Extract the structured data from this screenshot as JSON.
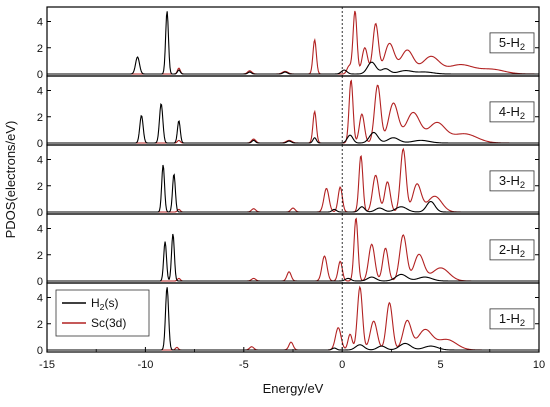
{
  "chart_data": {
    "type": "line",
    "xlabel": "Energy/eV",
    "ylabel": "PDOS(electrons/eV)",
    "xlim": [
      -15,
      10
    ],
    "xticks": [
      -15,
      -10,
      -5,
      0,
      5,
      10
    ],
    "ylim": [
      0,
      4.8
    ],
    "yticks": [
      0,
      2,
      4
    ],
    "fermi_level": 0,
    "legend": {
      "placement": "bottom-left",
      "entries": [
        "H2(s)",
        "Sc(3d)"
      ]
    },
    "series_colors": {
      "H2(s)": "#000000",
      "Sc(3d)": "#b22222"
    },
    "panels": [
      {
        "label": "5-H2",
        "h2_peaks": [
          [
            -10.4,
            1.3,
            0.14
          ],
          [
            -8.9,
            4.8,
            0.1
          ],
          [
            -8.3,
            0.3,
            0.1
          ],
          [
            -4.7,
            0.15,
            0.12
          ],
          [
            -2.9,
            0.15,
            0.15
          ],
          [
            0.1,
            0.3,
            0.2
          ],
          [
            1.5,
            0.9,
            0.3
          ],
          [
            2.2,
            0.4,
            0.3
          ],
          [
            3.2,
            0.25,
            0.5
          ],
          [
            4.2,
            0.15,
            0.6
          ]
        ],
        "sc_peaks": [
          [
            -8.3,
            0.45,
            0.1
          ],
          [
            -4.7,
            0.25,
            0.15
          ],
          [
            -2.9,
            0.2,
            0.2
          ],
          [
            -1.4,
            2.6,
            0.12
          ],
          [
            0.35,
            0.6,
            0.15
          ],
          [
            0.65,
            4.8,
            0.14
          ],
          [
            1.15,
            2.0,
            0.2
          ],
          [
            1.7,
            3.8,
            0.2
          ],
          [
            2.4,
            2.3,
            0.35
          ],
          [
            3.3,
            1.8,
            0.45
          ],
          [
            4.5,
            1.3,
            0.6
          ],
          [
            6.0,
            0.7,
            0.9
          ],
          [
            7.6,
            0.35,
            0.9
          ]
        ]
      },
      {
        "label": "4-H2",
        "h2_peaks": [
          [
            -10.2,
            2.1,
            0.12
          ],
          [
            -9.2,
            3.0,
            0.12
          ],
          [
            -8.3,
            1.7,
            0.1
          ],
          [
            -4.5,
            0.2,
            0.12
          ],
          [
            -2.7,
            0.15,
            0.15
          ],
          [
            -1.4,
            0.4,
            0.12
          ],
          [
            0.4,
            0.6,
            0.2
          ],
          [
            1.6,
            0.8,
            0.3
          ],
          [
            2.6,
            0.4,
            0.4
          ],
          [
            4.0,
            0.2,
            0.6
          ]
        ],
        "sc_peaks": [
          [
            -8.3,
            0.2,
            0.1
          ],
          [
            -4.5,
            0.3,
            0.15
          ],
          [
            -2.7,
            0.2,
            0.2
          ],
          [
            -1.4,
            2.4,
            0.12
          ],
          [
            0.45,
            4.8,
            0.14
          ],
          [
            1.0,
            2.2,
            0.18
          ],
          [
            1.8,
            4.4,
            0.22
          ],
          [
            2.6,
            3.0,
            0.35
          ],
          [
            3.6,
            2.3,
            0.5
          ],
          [
            4.8,
            1.5,
            0.6
          ],
          [
            6.2,
            0.7,
            0.9
          ]
        ]
      },
      {
        "label": "3-H2",
        "h2_peaks": [
          [
            -9.1,
            3.6,
            0.1
          ],
          [
            -8.55,
            2.9,
            0.1
          ],
          [
            -0.4,
            0.2,
            0.15
          ],
          [
            1.0,
            0.4,
            0.2
          ],
          [
            1.9,
            0.3,
            0.3
          ],
          [
            3.0,
            0.4,
            0.4
          ],
          [
            4.5,
            0.8,
            0.3
          ]
        ],
        "sc_peaks": [
          [
            -8.3,
            0.2,
            0.1
          ],
          [
            -4.5,
            0.25,
            0.15
          ],
          [
            -2.5,
            0.3,
            0.15
          ],
          [
            -0.8,
            1.8,
            0.18
          ],
          [
            -0.1,
            1.9,
            0.15
          ],
          [
            0.95,
            4.3,
            0.14
          ],
          [
            1.7,
            2.8,
            0.22
          ],
          [
            2.3,
            2.3,
            0.2
          ],
          [
            3.1,
            4.8,
            0.2
          ],
          [
            3.8,
            2.1,
            0.3
          ],
          [
            4.7,
            1.2,
            0.5
          ]
        ]
      },
      {
        "label": "2-H2",
        "h2_peaks": [
          [
            -9.0,
            3.0,
            0.1
          ],
          [
            -8.6,
            3.6,
            0.1
          ],
          [
            0.3,
            0.2,
            0.2
          ],
          [
            1.5,
            0.3,
            0.3
          ],
          [
            3.0,
            0.5,
            0.4
          ],
          [
            4.2,
            0.3,
            0.5
          ]
        ],
        "sc_peaks": [
          [
            -8.3,
            0.2,
            0.1
          ],
          [
            -4.5,
            0.2,
            0.15
          ],
          [
            -2.7,
            0.7,
            0.15
          ],
          [
            -0.9,
            1.9,
            0.18
          ],
          [
            -0.1,
            1.5,
            0.15
          ],
          [
            0.7,
            4.8,
            0.14
          ],
          [
            1.5,
            2.8,
            0.22
          ],
          [
            2.2,
            2.5,
            0.2
          ],
          [
            3.1,
            3.5,
            0.25
          ],
          [
            3.9,
            2.0,
            0.35
          ],
          [
            5.0,
            1.0,
            0.6
          ]
        ]
      },
      {
        "label": "1-H2",
        "h2_peaks": [
          [
            -8.9,
            4.8,
            0.11
          ],
          [
            -0.4,
            0.15,
            0.15
          ],
          [
            0.9,
            0.4,
            0.3
          ],
          [
            2.0,
            0.3,
            0.3
          ],
          [
            3.2,
            0.5,
            0.4
          ],
          [
            4.5,
            0.3,
            0.5
          ]
        ],
        "sc_peaks": [
          [
            -8.4,
            0.2,
            0.1
          ],
          [
            -4.6,
            0.25,
            0.15
          ],
          [
            -2.6,
            0.6,
            0.15
          ],
          [
            -0.2,
            1.7,
            0.2
          ],
          [
            0.4,
            1.2,
            0.15
          ],
          [
            0.9,
            4.8,
            0.18
          ],
          [
            1.6,
            2.2,
            0.25
          ],
          [
            2.4,
            3.6,
            0.22
          ],
          [
            3.3,
            2.2,
            0.3
          ],
          [
            4.2,
            1.5,
            0.5
          ],
          [
            5.3,
            0.8,
            0.7
          ]
        ]
      }
    ]
  }
}
